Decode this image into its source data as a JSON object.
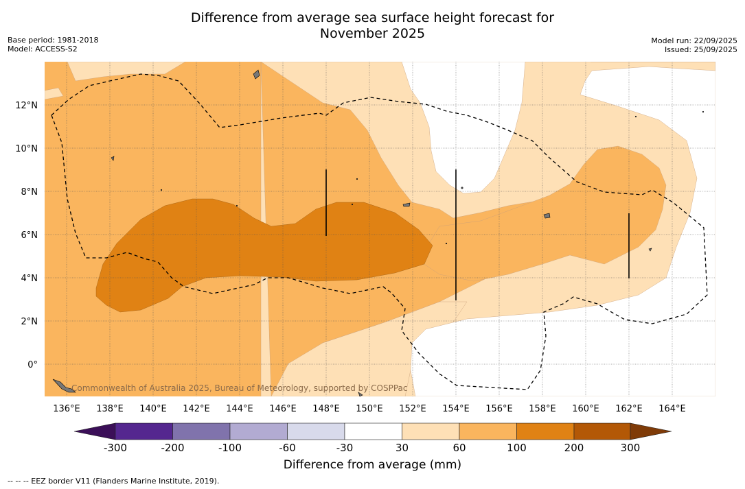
{
  "title_line1": "Difference from average sea surface height forecast for",
  "title_line2": "November 2025",
  "base_period": "Base period: 1981-2018",
  "model": "Model: ACCESS-S2",
  "model_run": "Model run: 22/09/2025",
  "issued": "Issued: 25/09/2025",
  "copyright": "Commonwealth of Australia 2025, Bureau of Meteorology, supported by COSPPac",
  "colorbar_title": "Difference from average (mm)",
  "footnote": "--  --  -- EEZ border V11 (Flanders Marine Institute, 2019).",
  "x_ticks": [
    "136°E",
    "138°E",
    "140°E",
    "142°E",
    "144°E",
    "146°E",
    "148°E",
    "150°E",
    "152°E",
    "154°E",
    "156°E",
    "158°E",
    "160°E",
    "162°E",
    "164°E"
  ],
  "y_ticks": [
    "12°N",
    "10°N",
    "8°N",
    "6°N",
    "4°N",
    "2°N",
    "0°"
  ],
  "colorbar_labels": [
    "-300",
    "-200",
    "-100",
    "-60",
    "-30",
    "30",
    "60",
    "100",
    "200",
    "300"
  ],
  "colors": {
    "c_lt300": "#3b0f58",
    "c_300_200": "#54278f",
    "c_200_100": "#8073ac",
    "c_100_60": "#b2abd2",
    "c_60_30": "#d8daeb",
    "c_30_30": "#ffffff",
    "c_30_60": "#fee0b6",
    "c_60_100": "#fab55e",
    "c_100_200": "#e08214",
    "c_200_300": "#b35806",
    "c_gt300": "#7f3b08"
  }
}
